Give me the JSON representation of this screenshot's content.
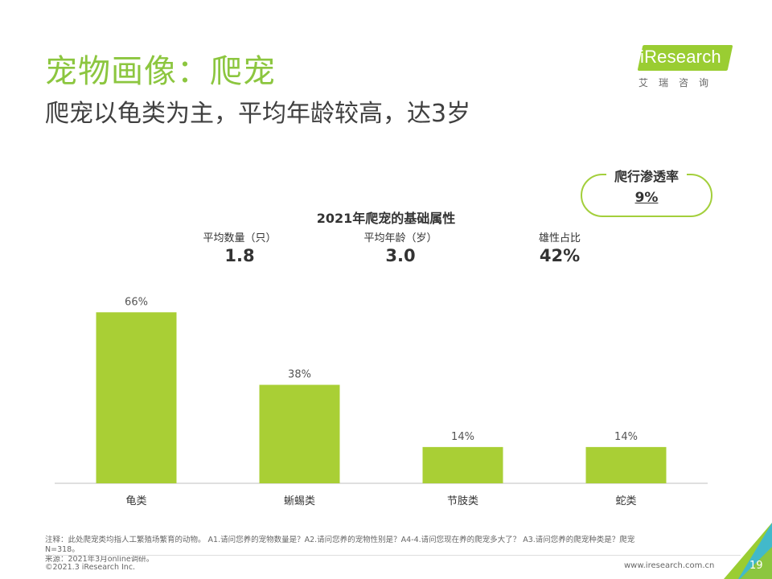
{
  "page": {
    "title": "宠物画像：爬宠",
    "subtitle": "爬宠以龟类为主，平均年龄较高，达3岁",
    "page_number": "19",
    "website": "www.iresearch.com.cn",
    "copyright": "©2021.3 iResearch Inc.",
    "footnote_lines": [
      "注释：此处爬宠类均指人工繁殖场繁育的动物。 A1.请问您养的宠物数量是？A2.请问您养的宠物性别是？A4-4.请问您现在养的爬宠多大了？ A3.请问您养的爬宠种类是？爬宠",
      "N=318。",
      "来源：2021年3月online调研。"
    ]
  },
  "logo": {
    "text": "iResearch",
    "cn": "艾瑞咨询"
  },
  "penetration": {
    "label": "爬行渗透率",
    "value": "9%"
  },
  "stats": [
    {
      "label": "平均数量（只）",
      "value": "1.8"
    },
    {
      "label": "平均年龄（岁）",
      "value": "3.0"
    },
    {
      "label": "雄性占比",
      "value": "42%"
    }
  ],
  "colors": {
    "accent": "#8cc63f",
    "bar": "#a9cf35",
    "brand": "#9acd32"
  },
  "chart_data": {
    "type": "bar",
    "title": "2021年爬宠的基础属性",
    "categories": [
      "龟类",
      "蜥蜴类",
      "节肢类",
      "蛇类"
    ],
    "values": [
      66,
      38,
      14,
      14
    ],
    "value_labels": [
      "66%",
      "38%",
      "14%",
      "14%"
    ],
    "unit": "%",
    "ylim": [
      0,
      70
    ],
    "xlabel": "",
    "ylabel": "",
    "grid": false,
    "legend": "none"
  }
}
